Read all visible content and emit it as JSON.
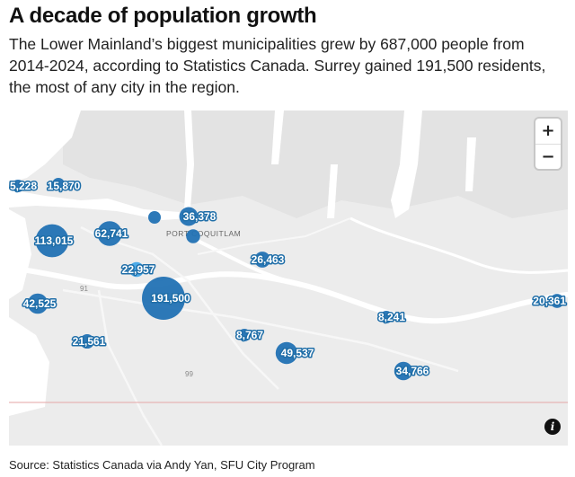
{
  "header": {
    "title": "A decade of population growth",
    "subtitle": "The Lower Mainland’s biggest municipalities grew by 687,000 people from 2014-2024, according to Statistics Canada. Surrey gained 191,500 residents, the most of any city in the region."
  },
  "map": {
    "place_labels": {
      "port_coquitlam": "PORT COQUITLAM"
    },
    "road_labels": {
      "hwy_91": "91",
      "hwy_99": "99"
    },
    "zoom_in_label": "+",
    "zoom_out_label": "−",
    "info_icon": "i",
    "bubble_color": "#2272b4",
    "highlight_color": "#45a8e8",
    "water_color": "#ffffff",
    "land_color": "#ececec",
    "bubbles": [
      {
        "label": "5,228",
        "value": 5228
      },
      {
        "label": "15,870",
        "value": 15870
      },
      {
        "label": "113,015",
        "value": 113015
      },
      {
        "label": "62,741",
        "value": 62741
      },
      {
        "label": "",
        "value": 12000
      },
      {
        "label": "36,378",
        "value": 36378
      },
      {
        "label": "",
        "value": 20000
      },
      {
        "label": "22,957",
        "value": 22957,
        "highlight": true
      },
      {
        "label": "26,463",
        "value": 26463
      },
      {
        "label": "42,525",
        "value": 42525
      },
      {
        "label": "191,500",
        "value": 191500
      },
      {
        "label": "21,561",
        "value": 21561
      },
      {
        "label": "8,767",
        "value": 8767
      },
      {
        "label": "49,537",
        "value": 49537
      },
      {
        "label": "8,241",
        "value": 8241
      },
      {
        "label": "34,766",
        "value": 34766
      },
      {
        "label": "20,361",
        "value": 20361
      }
    ]
  },
  "footer": {
    "source": "Source: Statistics Canada via Andy Yan, SFU City Program"
  }
}
